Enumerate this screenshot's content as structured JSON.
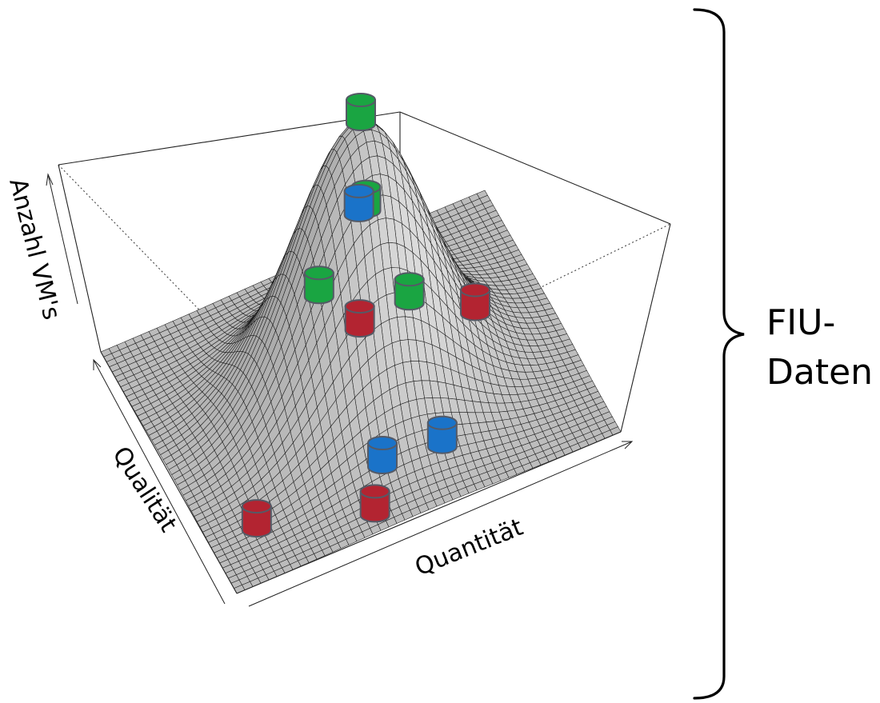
{
  "chart_data": {
    "type": "surface",
    "xlabel": "Quantität",
    "ylabel": "Qualität",
    "zlabel": "Anzahl VM's",
    "surface": {
      "function": "gaussian",
      "x_range": [
        -3,
        3
      ],
      "y_range": [
        -3,
        3
      ],
      "grid": 48,
      "peak_height": 1,
      "sigma": 1,
      "color": "#d0d0d0",
      "mesh_color": "#1a1a1a"
    },
    "markers": [
      {
        "label": "green",
        "color": "#1aa542",
        "x": 0.0,
        "y": 0.0,
        "z": 1.0
      },
      {
        "label": "green",
        "color": "#1aa542",
        "x": -0.9,
        "y": -0.7,
        "z": 0.55
      },
      {
        "label": "green",
        "color": "#1aa542",
        "x": 0.4,
        "y": 0.9,
        "z": 0.5
      },
      {
        "label": "green",
        "color": "#1aa542",
        "x": 0.9,
        "y": 0.4,
        "z": 0.18
      },
      {
        "label": "blue",
        "color": "#1a73c9",
        "x": -0.1,
        "y": -0.2,
        "z": 0.7
      },
      {
        "label": "blue",
        "color": "#1a73c9",
        "x": -0.3,
        "y": -1.8,
        "z": 0.02
      },
      {
        "label": "blue",
        "color": "#1a73c9",
        "x": 0.6,
        "y": -1.9,
        "z": 0.02
      },
      {
        "label": "red",
        "color": "#b32431",
        "x": -0.3,
        "y": -0.8,
        "z": 0.38
      },
      {
        "label": "red",
        "color": "#b32431",
        "x": -2.3,
        "y": -1.9,
        "z": 0.0
      },
      {
        "label": "red",
        "color": "#b32431",
        "x": -0.7,
        "y": -2.6,
        "z": 0.0
      },
      {
        "label": "red",
        "color": "#b32431",
        "x": 2.0,
        "y": 0.6,
        "z": 0.0
      }
    ]
  },
  "bracket_label": {
    "line1": "FIU-",
    "line2": "Daten"
  }
}
